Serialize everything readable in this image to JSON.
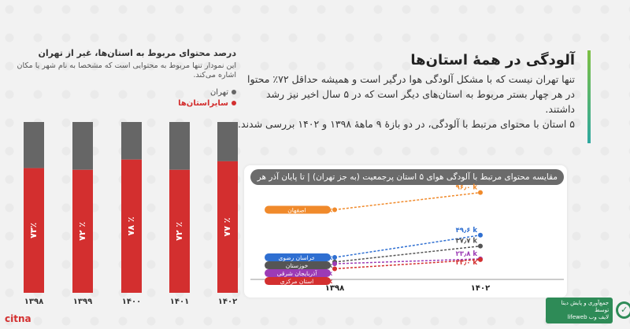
{
  "article": {
    "title": "آلودگی در همهٔ استان‌ها",
    "paragraph1": "تنها تهران نیست که با مشکل آلودگی هوا درگیر است و همیشه حداقل ۷۲٪ محتوا در هر چهار بستر مربوط به استان‌های دیگر است که در ۵ سال اخیر نیز رشد داشتند.",
    "paragraph2": "۵ استان با محتوای مرتبط با آلودگی، در دو بازهٔ ۹ ماههٔ ۱۳۹۸ و ۱۴۰۲ بررسی شدند."
  },
  "left_panel": {
    "title": "درصد محتوای مربوط به استان‌ها، غیر از تهران",
    "note": "این نمودار تنها مربوط به محتوایی است که مشخصا به نام شهر یا مکان اشاره می‌کند.",
    "legend": [
      {
        "label": "تهران",
        "color": "#666666"
      },
      {
        "label": "سایراستان‌ها",
        "color": "#d32f2f"
      }
    ]
  },
  "chart_data": [
    {
      "type": "bar",
      "stacked": true,
      "categories": [
        "۱۳۹۸",
        "۱۳۹۹",
        "۱۴۰۰",
        "۱۴۰۱",
        "۱۴۰۲"
      ],
      "series": [
        {
          "name": "سایراستان‌ها",
          "values": [
            73,
            72,
            78,
            72,
            77
          ],
          "labels": [
            "۷۳٪",
            "۷۲ ٪",
            "۷۸ ٪",
            "۷۲ ٪",
            "۷۷ ٪"
          ],
          "color": "#d32f2f"
        },
        {
          "name": "تهران",
          "values": [
            27,
            28,
            22,
            28,
            23
          ],
          "color": "#666666"
        }
      ],
      "ylim": [
        0,
        100
      ]
    },
    {
      "type": "line",
      "title": "مقایسه محتوای مرتبط با آلودگی هوای ۵ استان پرجمعیت (به جز تهران)  |  تا پایان آذر هر سال",
      "x": [
        "۱۳۹۸",
        "۱۴۰۲"
      ],
      "series": [
        {
          "name": "اصفهان",
          "values": [
            77300,
            96000
          ],
          "labels": [
            "۷۷٫۳ k",
            "۹۶٫۰ k"
          ],
          "color": "#f08a2b"
        },
        {
          "name": "خراسان رضوی",
          "values": [
            25400,
            49600
          ],
          "labels": [
            "۲۵٫۴ k",
            "۴۹٫۶ k"
          ],
          "color": "#2f6fd1"
        },
        {
          "name": "خوزستان",
          "values": [
            20400,
            37700
          ],
          "labels": [
            "۲۰٫۴ k",
            "۳۷٫۷ k"
          ],
          "color": "#555555"
        },
        {
          "name": "آذربایجان شرقی",
          "values": [
            18500,
            23800
          ],
          "labels": [
            "۱۸٫۵ k",
            "۲۳٫۸ k"
          ],
          "color": "#9c3bb5"
        },
        {
          "name": "استان مرکزی",
          "values": [
            13000,
            23000
          ],
          "labels": [
            "۱۳٫۰ k",
            "۲۳٫۰ k"
          ],
          "color": "#d32f2f"
        }
      ]
    }
  ],
  "branding": {
    "logo_text": "جمع‌آوری و پایش دیتا توسط",
    "logo_name": "لایف وب",
    "logo_sub": "lifeweb",
    "source": "citna"
  }
}
